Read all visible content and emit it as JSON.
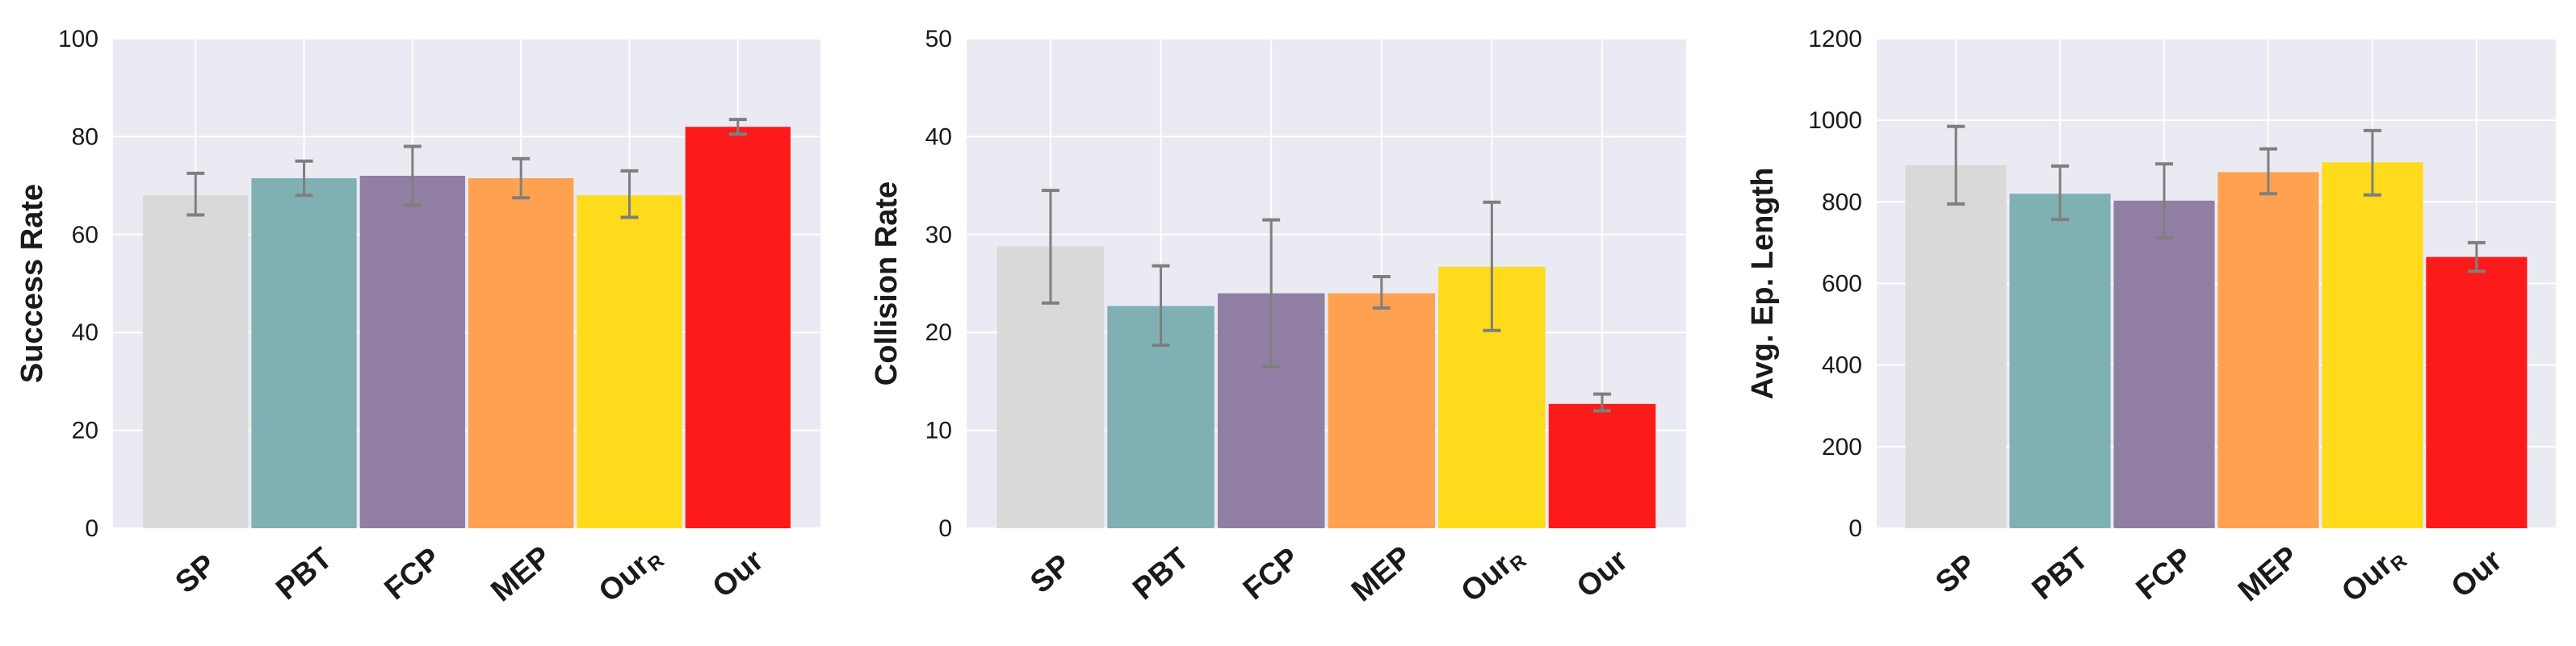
{
  "chart_data": [
    {
      "type": "bar",
      "ylabel": "Success Rate",
      "ylim": [
        0,
        100
      ],
      "yticks": [
        0,
        20,
        40,
        60,
        80,
        100
      ],
      "grid": true,
      "categories": [
        {
          "main": "SP",
          "sub": ""
        },
        {
          "main": "PBT",
          "sub": ""
        },
        {
          "main": "FCP",
          "sub": ""
        },
        {
          "main": "MEP",
          "sub": ""
        },
        {
          "main": "Our",
          "sub": "R"
        },
        {
          "main": "Our",
          "sub": ""
        }
      ],
      "values": [
        68,
        71.5,
        72,
        71.5,
        68,
        82
      ],
      "errors": [
        [
          64,
          72.5
        ],
        [
          68,
          75
        ],
        [
          66,
          78
        ],
        [
          67.5,
          75.5
        ],
        [
          63.5,
          73
        ],
        [
          80.5,
          83.5
        ]
      ]
    },
    {
      "type": "bar",
      "ylabel": "Collision Rate",
      "ylim": [
        0,
        50
      ],
      "yticks": [
        0,
        10,
        20,
        30,
        40,
        50
      ],
      "grid": true,
      "categories": [
        {
          "main": "SP",
          "sub": ""
        },
        {
          "main": "PBT",
          "sub": ""
        },
        {
          "main": "FCP",
          "sub": ""
        },
        {
          "main": "MEP",
          "sub": ""
        },
        {
          "main": "Our",
          "sub": "R"
        },
        {
          "main": "Our",
          "sub": ""
        }
      ],
      "values": [
        28.8,
        22.7,
        24,
        24,
        26.7,
        12.7
      ],
      "errors": [
        [
          23,
          34.5
        ],
        [
          18.7,
          26.8
        ],
        [
          16.5,
          31.5
        ],
        [
          22.5,
          25.7
        ],
        [
          20.2,
          33.3
        ],
        [
          12,
          13.7
        ]
      ]
    },
    {
      "type": "bar",
      "ylabel": "Avg. Ep. Length",
      "ylim": [
        0,
        1200
      ],
      "yticks": [
        0,
        200,
        400,
        600,
        800,
        1000,
        1200
      ],
      "grid": true,
      "categories": [
        {
          "main": "SP",
          "sub": ""
        },
        {
          "main": "PBT",
          "sub": ""
        },
        {
          "main": "FCP",
          "sub": ""
        },
        {
          "main": "MEP",
          "sub": ""
        },
        {
          "main": "Our",
          "sub": "R"
        },
        {
          "main": "Our",
          "sub": ""
        }
      ],
      "values": [
        890,
        820,
        803,
        873,
        897,
        665
      ],
      "errors": [
        [
          795,
          985
        ],
        [
          757,
          888
        ],
        [
          712,
          893
        ],
        [
          820,
          930
        ],
        [
          817,
          975
        ],
        [
          630,
          700
        ]
      ]
    }
  ],
  "colors": [
    "#d9d9d9",
    "#7fb0b4",
    "#917fa3",
    "#fea251",
    "#fedb1b",
    "#fd1a1a"
  ],
  "plot_background": "#eaeaf2",
  "grid_color": "#ffffff",
  "errorbar_color": "#7f7f7f"
}
